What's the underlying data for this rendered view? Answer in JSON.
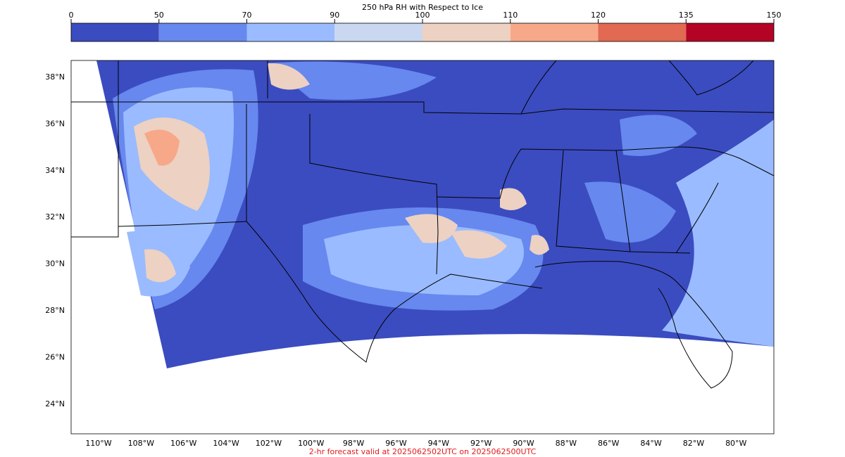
{
  "colorbar": {
    "title": "250 hPa RH with Respect to Ice",
    "ticks": [
      0,
      50,
      70,
      90,
      100,
      110,
      120,
      135,
      150
    ],
    "colors": [
      "#3b4cc0",
      "#6788ee",
      "#9abbff",
      "#c9d7f0",
      "#edd1c2",
      "#f7a889",
      "#e26952",
      "#b40426"
    ]
  },
  "map": {
    "lat_labels": [
      "38°N",
      "36°N",
      "34°N",
      "32°N",
      "30°N",
      "28°N",
      "26°N",
      "24°N"
    ],
    "lon_labels": [
      "110°W",
      "108°W",
      "106°W",
      "104°W",
      "102°W",
      "100°W",
      "98°W",
      "96°W",
      "94°W",
      "92°W",
      "90°W",
      "88°W",
      "86°W",
      "84°W",
      "82°W",
      "80°W"
    ]
  },
  "footer": "2-hr forecast valid at 2025062502UTC on 2025062500UTC"
}
